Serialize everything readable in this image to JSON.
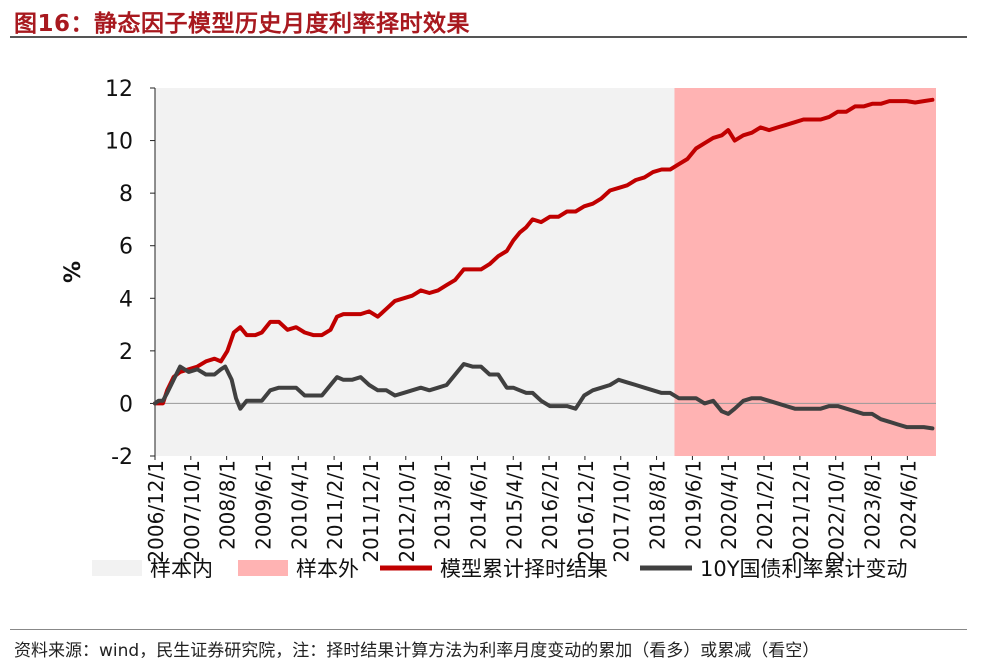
{
  "title": "图16：静态因子模型历史月度利率择时效果",
  "source": "资料来源：wind，民生证券研究院，注：择时结果计算方法为利率月度变动的累加（看多）或累减（看空）",
  "chart_data": {
    "type": "line",
    "ylabel": "%",
    "ylim": [
      -2,
      12
    ],
    "yticks": [
      12,
      10,
      8,
      6,
      4,
      2,
      0,
      -2
    ],
    "xlim": [
      2006.917,
      2025.083
    ],
    "xticks": [
      {
        "label": "2006/12/1",
        "x": 2006.917
      },
      {
        "label": "2007/10/1",
        "x": 2007.75
      },
      {
        "label": "2008/8/1",
        "x": 2008.583
      },
      {
        "label": "2009/6/1",
        "x": 2009.417
      },
      {
        "label": "2010/4/1",
        "x": 2010.25
      },
      {
        "label": "2011/2/1",
        "x": 2011.083
      },
      {
        "label": "2011/12/1",
        "x": 2011.917
      },
      {
        "label": "2012/10/1",
        "x": 2012.75
      },
      {
        "label": "2013/8/1",
        "x": 2013.583
      },
      {
        "label": "2014/6/1",
        "x": 2014.417
      },
      {
        "label": "2015/4/1",
        "x": 2015.25
      },
      {
        "label": "2016/2/1",
        "x": 2016.083
      },
      {
        "label": "2016/12/1",
        "x": 2016.917
      },
      {
        "label": "2017/10/1",
        "x": 2017.75
      },
      {
        "label": "2018/8/1",
        "x": 2018.583
      },
      {
        "label": "2019/6/1",
        "x": 2019.417
      },
      {
        "label": "2020/4/1",
        "x": 2020.25
      },
      {
        "label": "2021/2/1",
        "x": 2021.083
      },
      {
        "label": "2021/12/1",
        "x": 2021.917
      },
      {
        "label": "2022/10/1",
        "x": 2022.75
      },
      {
        "label": "2023/8/1",
        "x": 2023.583
      },
      {
        "label": "2024/6/1",
        "x": 2024.417
      }
    ],
    "regions": [
      {
        "name": "样本内",
        "x0": 2006.917,
        "x1": 2019.0,
        "color": "#f2f2f2"
      },
      {
        "name": "样本外",
        "x0": 2019.0,
        "x1": 2025.083,
        "color": "#ffb3b3"
      }
    ],
    "series": [
      {
        "name": "模型累计择时结果",
        "color": "#c00000",
        "points": [
          [
            2006.917,
            0.0
          ],
          [
            2007.0,
            0.0
          ],
          [
            2007.1,
            0.0
          ],
          [
            2007.2,
            0.5
          ],
          [
            2007.35,
            1.0
          ],
          [
            2007.5,
            1.2
          ],
          [
            2007.7,
            1.3
          ],
          [
            2007.9,
            1.4
          ],
          [
            2008.1,
            1.6
          ],
          [
            2008.3,
            1.7
          ],
          [
            2008.45,
            1.6
          ],
          [
            2008.6,
            2.0
          ],
          [
            2008.75,
            2.7
          ],
          [
            2008.9,
            2.9
          ],
          [
            2009.05,
            2.6
          ],
          [
            2009.25,
            2.6
          ],
          [
            2009.4,
            2.7
          ],
          [
            2009.6,
            3.1
          ],
          [
            2009.8,
            3.1
          ],
          [
            2010.0,
            2.8
          ],
          [
            2010.2,
            2.9
          ],
          [
            2010.4,
            2.7
          ],
          [
            2010.6,
            2.6
          ],
          [
            2010.8,
            2.6
          ],
          [
            2011.0,
            2.8
          ],
          [
            2011.15,
            3.3
          ],
          [
            2011.3,
            3.4
          ],
          [
            2011.5,
            3.4
          ],
          [
            2011.7,
            3.4
          ],
          [
            2011.9,
            3.5
          ],
          [
            2012.1,
            3.3
          ],
          [
            2012.3,
            3.6
          ],
          [
            2012.5,
            3.9
          ],
          [
            2012.7,
            4.0
          ],
          [
            2012.9,
            4.1
          ],
          [
            2013.1,
            4.3
          ],
          [
            2013.3,
            4.2
          ],
          [
            2013.5,
            4.3
          ],
          [
            2013.7,
            4.5
          ],
          [
            2013.9,
            4.7
          ],
          [
            2014.1,
            5.1
          ],
          [
            2014.3,
            5.1
          ],
          [
            2014.5,
            5.1
          ],
          [
            2014.7,
            5.3
          ],
          [
            2014.9,
            5.6
          ],
          [
            2015.1,
            5.8
          ],
          [
            2015.25,
            6.2
          ],
          [
            2015.4,
            6.5
          ],
          [
            2015.55,
            6.7
          ],
          [
            2015.7,
            7.0
          ],
          [
            2015.9,
            6.9
          ],
          [
            2016.1,
            7.1
          ],
          [
            2016.3,
            7.1
          ],
          [
            2016.5,
            7.3
          ],
          [
            2016.7,
            7.3
          ],
          [
            2016.9,
            7.5
          ],
          [
            2017.1,
            7.6
          ],
          [
            2017.3,
            7.8
          ],
          [
            2017.5,
            8.1
          ],
          [
            2017.7,
            8.2
          ],
          [
            2017.9,
            8.3
          ],
          [
            2018.1,
            8.5
          ],
          [
            2018.3,
            8.6
          ],
          [
            2018.5,
            8.8
          ],
          [
            2018.7,
            8.9
          ],
          [
            2018.9,
            8.9
          ],
          [
            2019.1,
            9.1
          ],
          [
            2019.3,
            9.3
          ],
          [
            2019.5,
            9.7
          ],
          [
            2019.7,
            9.9
          ],
          [
            2019.9,
            10.1
          ],
          [
            2020.1,
            10.2
          ],
          [
            2020.25,
            10.4
          ],
          [
            2020.4,
            10.0
          ],
          [
            2020.6,
            10.2
          ],
          [
            2020.8,
            10.3
          ],
          [
            2021.0,
            10.5
          ],
          [
            2021.2,
            10.4
          ],
          [
            2021.4,
            10.5
          ],
          [
            2021.6,
            10.6
          ],
          [
            2021.8,
            10.7
          ],
          [
            2022.0,
            10.8
          ],
          [
            2022.2,
            10.8
          ],
          [
            2022.4,
            10.8
          ],
          [
            2022.6,
            10.9
          ],
          [
            2022.8,
            11.1
          ],
          [
            2023.0,
            11.1
          ],
          [
            2023.2,
            11.3
          ],
          [
            2023.4,
            11.3
          ],
          [
            2023.6,
            11.4
          ],
          [
            2023.8,
            11.4
          ],
          [
            2024.0,
            11.5
          ],
          [
            2024.2,
            11.5
          ],
          [
            2024.4,
            11.5
          ],
          [
            2024.6,
            11.45
          ],
          [
            2024.8,
            11.5
          ],
          [
            2025.0,
            11.55
          ]
        ]
      },
      {
        "name": "10Y国债利率累计变动",
        "color": "#404040",
        "points": [
          [
            2006.917,
            0.0
          ],
          [
            2007.0,
            0.1
          ],
          [
            2007.1,
            0.1
          ],
          [
            2007.2,
            0.4
          ],
          [
            2007.35,
            0.9
          ],
          [
            2007.5,
            1.4
          ],
          [
            2007.7,
            1.2
          ],
          [
            2007.9,
            1.3
          ],
          [
            2008.1,
            1.1
          ],
          [
            2008.3,
            1.1
          ],
          [
            2008.45,
            1.3
          ],
          [
            2008.55,
            1.4
          ],
          [
            2008.7,
            0.9
          ],
          [
            2008.8,
            0.2
          ],
          [
            2008.9,
            -0.2
          ],
          [
            2009.05,
            0.1
          ],
          [
            2009.25,
            0.1
          ],
          [
            2009.4,
            0.1
          ],
          [
            2009.6,
            0.5
          ],
          [
            2009.8,
            0.6
          ],
          [
            2010.0,
            0.6
          ],
          [
            2010.2,
            0.6
          ],
          [
            2010.4,
            0.3
          ],
          [
            2010.6,
            0.3
          ],
          [
            2010.8,
            0.3
          ],
          [
            2011.0,
            0.7
          ],
          [
            2011.15,
            1.0
          ],
          [
            2011.3,
            0.9
          ],
          [
            2011.5,
            0.9
          ],
          [
            2011.7,
            1.0
          ],
          [
            2011.9,
            0.7
          ],
          [
            2012.1,
            0.5
          ],
          [
            2012.3,
            0.5
          ],
          [
            2012.5,
            0.3
          ],
          [
            2012.7,
            0.4
          ],
          [
            2012.9,
            0.5
          ],
          [
            2013.1,
            0.6
          ],
          [
            2013.3,
            0.5
          ],
          [
            2013.5,
            0.6
          ],
          [
            2013.7,
            0.7
          ],
          [
            2013.9,
            1.1
          ],
          [
            2014.1,
            1.5
          ],
          [
            2014.3,
            1.4
          ],
          [
            2014.5,
            1.4
          ],
          [
            2014.7,
            1.1
          ],
          [
            2014.9,
            1.1
          ],
          [
            2015.1,
            0.6
          ],
          [
            2015.25,
            0.6
          ],
          [
            2015.4,
            0.5
          ],
          [
            2015.55,
            0.4
          ],
          [
            2015.7,
            0.4
          ],
          [
            2015.9,
            0.1
          ],
          [
            2016.1,
            -0.1
          ],
          [
            2016.3,
            -0.1
          ],
          [
            2016.5,
            -0.1
          ],
          [
            2016.7,
            -0.2
          ],
          [
            2016.9,
            0.3
          ],
          [
            2017.1,
            0.5
          ],
          [
            2017.3,
            0.6
          ],
          [
            2017.5,
            0.7
          ],
          [
            2017.7,
            0.9
          ],
          [
            2017.9,
            0.8
          ],
          [
            2018.1,
            0.7
          ],
          [
            2018.3,
            0.6
          ],
          [
            2018.5,
            0.5
          ],
          [
            2018.7,
            0.4
          ],
          [
            2018.9,
            0.4
          ],
          [
            2019.1,
            0.2
          ],
          [
            2019.3,
            0.2
          ],
          [
            2019.5,
            0.2
          ],
          [
            2019.7,
            0.0
          ],
          [
            2019.9,
            0.1
          ],
          [
            2020.1,
            -0.3
          ],
          [
            2020.25,
            -0.4
          ],
          [
            2020.4,
            -0.2
          ],
          [
            2020.6,
            0.1
          ],
          [
            2020.8,
            0.2
          ],
          [
            2021.0,
            0.2
          ],
          [
            2021.2,
            0.1
          ],
          [
            2021.4,
            0.0
          ],
          [
            2021.6,
            -0.1
          ],
          [
            2021.8,
            -0.2
          ],
          [
            2022.0,
            -0.2
          ],
          [
            2022.2,
            -0.2
          ],
          [
            2022.4,
            -0.2
          ],
          [
            2022.6,
            -0.1
          ],
          [
            2022.8,
            -0.1
          ],
          [
            2023.0,
            -0.2
          ],
          [
            2023.2,
            -0.3
          ],
          [
            2023.4,
            -0.4
          ],
          [
            2023.6,
            -0.4
          ],
          [
            2023.8,
            -0.6
          ],
          [
            2024.0,
            -0.7
          ],
          [
            2024.2,
            -0.8
          ],
          [
            2024.4,
            -0.9
          ],
          [
            2024.6,
            -0.9
          ],
          [
            2024.8,
            -0.9
          ],
          [
            2025.0,
            -0.95
          ]
        ]
      }
    ],
    "legend": [
      {
        "label": "样本内",
        "kind": "patch",
        "color": "#f2f2f2"
      },
      {
        "label": "样本外",
        "kind": "patch",
        "color": "#ffb3b3"
      },
      {
        "label": "模型累计择时结果",
        "kind": "line",
        "color": "#c00000"
      },
      {
        "label": "10Y国债利率累计变动",
        "kind": "line",
        "color": "#404040"
      }
    ],
    "legend_position": "bottom",
    "grid": false
  }
}
